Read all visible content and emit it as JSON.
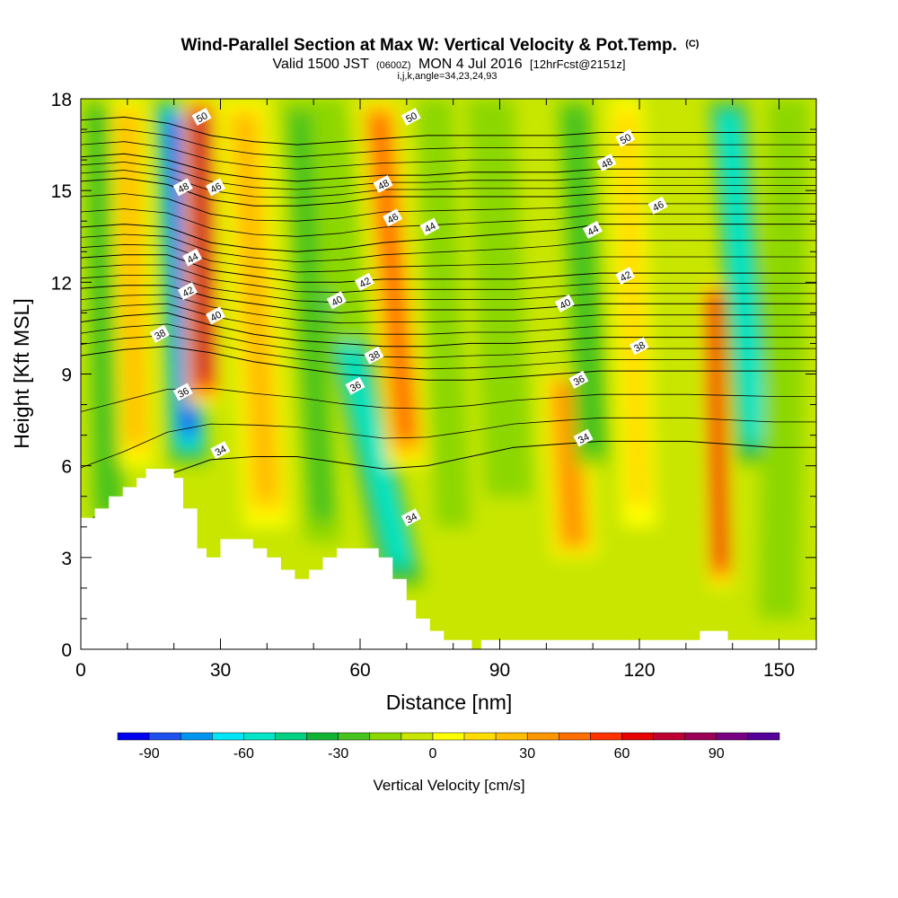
{
  "chart_data": {
    "type": "heatmap",
    "title": "Wind-Parallel Section at Max W: Vertical Velocity & Pot.Temp.",
    "title_mark": "(C)",
    "subtitle_parts": [
      "Valid 1500 JST",
      "(0600Z)",
      "MON 4 Jul 2016",
      "[12hrFcst@2151z]"
    ],
    "subtitle2": "i,j,k,angle=34,23,24,93",
    "xlabel": "Distance [nm]",
    "ylabel": "Height [Kft MSL]",
    "xlim": [
      0,
      158
    ],
    "ylim": [
      0,
      18
    ],
    "xticks": [
      0,
      30,
      60,
      90,
      120,
      150
    ],
    "yticks": [
      0,
      3,
      6,
      9,
      12,
      15,
      18
    ],
    "colorbar": {
      "label": "Vertical Velocity [cm/s]",
      "range": [
        -100,
        110
      ],
      "step": 10,
      "tick_values": [
        -90,
        -60,
        -30,
        0,
        30,
        60,
        90
      ],
      "tick_labels": [
        "-90",
        "-60",
        "-30",
        "0",
        "30",
        "60",
        "90"
      ],
      "colors": [
        "#0000f0",
        "#1e50f0",
        "#0096f0",
        "#00e6f8",
        "#00e6c8",
        "#00d282",
        "#10b432",
        "#46c31e",
        "#8cd700",
        "#c8e600",
        "#ffff00",
        "#ffdc00",
        "#ffbe00",
        "#ff9600",
        "#ff6e00",
        "#ff3200",
        "#e60000",
        "#be0032",
        "#9a0055",
        "#780082",
        "#55009a"
      ]
    },
    "terrain_profile": {
      "x": [
        0,
        3,
        3,
        6,
        6,
        9,
        9,
        12,
        12,
        14,
        14,
        20,
        20,
        22,
        22,
        25,
        25,
        27,
        27,
        30,
        30,
        33,
        33,
        37,
        37,
        40,
        40,
        43,
        43,
        46,
        46,
        49,
        49,
        52,
        52,
        55,
        55,
        57,
        57,
        61,
        61,
        64,
        64,
        67,
        67,
        70,
        70,
        72,
        72,
        75,
        75,
        78,
        78,
        82,
        82,
        84,
        84,
        86,
        86,
        133,
        133,
        139,
        139,
        158
      ],
      "y": [
        4.3,
        4.3,
        4.6,
        4.6,
        5.0,
        5.0,
        5.3,
        5.3,
        5.6,
        5.6,
        5.9,
        5.9,
        5.6,
        5.6,
        4.6,
        4.6,
        3.3,
        3.3,
        3.0,
        3.0,
        3.6,
        3.6,
        3.6,
        3.6,
        3.3,
        3.3,
        3.0,
        3.0,
        2.6,
        2.6,
        2.3,
        2.3,
        2.6,
        2.6,
        3.0,
        3.0,
        3.3,
        3.3,
        3.3,
        3.3,
        3.3,
        3.3,
        3.0,
        3.0,
        2.3,
        2.3,
        1.6,
        1.6,
        1.0,
        1.0,
        0.6,
        0.6,
        0.3,
        0.3,
        0.3,
        0.3,
        0.0,
        0.0,
        0.3,
        0.3,
        0.6,
        0.6,
        0.3,
        0.3
      ]
    },
    "velocity_bands": [
      {
        "bottom": [
          23.2,
          6.0
        ],
        "top": [
          20.0,
          18.0
        ],
        "halfwidth": 3.5,
        "value": -85
      },
      {
        "bottom": [
          26.5,
          8.0
        ],
        "top": [
          25.5,
          18.0
        ],
        "halfwidth": 3.0,
        "value": 75
      },
      {
        "bottom": [
          6.0,
          4.0
        ],
        "top": [
          4.0,
          18.0
        ],
        "halfwidth": 3.0,
        "value": -30
      },
      {
        "bottom": [
          12.0,
          6.0
        ],
        "top": [
          10.0,
          18.0
        ],
        "halfwidth": 3.0,
        "value": 20
      },
      {
        "bottom": [
          40.0,
          4.0
        ],
        "top": [
          35.0,
          18.0
        ],
        "halfwidth": 4.0,
        "value": 20
      },
      {
        "bottom": [
          52.0,
          3.5
        ],
        "top": [
          47.0,
          18.0
        ],
        "halfwidth": 3.0,
        "value": -25
      },
      {
        "bottom": [
          69.0,
          2.0
        ],
        "top": [
          55.0,
          12.0
        ],
        "halfwidth": 4.0,
        "value": -55
      },
      {
        "bottom": [
          70.0,
          6.0
        ],
        "top": [
          64.0,
          18.0
        ],
        "halfwidth": 3.5,
        "value": 45
      },
      {
        "bottom": [
          58.0,
          10.0
        ],
        "top": [
          53.0,
          18.0
        ],
        "halfwidth": 3.0,
        "value": -20
      },
      {
        "bottom": [
          80.0,
          4.0
        ],
        "top": [
          76.0,
          18.0
        ],
        "halfwidth": 3.0,
        "value": -15
      },
      {
        "bottom": [
          92.0,
          5.0
        ],
        "top": [
          88.0,
          18.0
        ],
        "halfwidth": 4.0,
        "value": -12
      },
      {
        "bottom": [
          106.0,
          3.0
        ],
        "top": [
          104.0,
          9.0
        ],
        "halfwidth": 4.0,
        "value": 30
      },
      {
        "bottom": [
          110.0,
          6.0
        ],
        "top": [
          106.0,
          18.0
        ],
        "halfwidth": 3.0,
        "value": -30
      },
      {
        "bottom": [
          120.0,
          4.0
        ],
        "top": [
          117.0,
          18.0
        ],
        "halfwidth": 3.0,
        "value": 12
      },
      {
        "bottom": [
          137.5,
          2.0
        ],
        "top": [
          136.0,
          12.0
        ],
        "halfwidth": 2.2,
        "value": 65
      },
      {
        "bottom": [
          145.0,
          6.0
        ],
        "top": [
          139.0,
          18.0
        ],
        "halfwidth": 3.5,
        "value": -60
      },
      {
        "bottom": [
          150.0,
          1.0
        ],
        "top": [
          152.0,
          18.0
        ],
        "halfwidth": 3.5,
        "value": -20
      }
    ],
    "isentropes": {
      "levels": [
        34,
        36,
        38,
        40,
        42,
        44,
        46,
        48,
        50
      ],
      "heights_kft": [
        [
          4.1,
          4.8,
          5.7,
          6.2,
          6.3,
          6.3,
          6.1,
          5.9,
          6.0,
          6.3,
          6.6,
          6.7,
          6.8,
          6.8,
          6.8,
          6.7,
          6.6,
          6.6
        ],
        [
          9.6,
          9.8,
          9.9,
          9.7,
          9.4,
          9.2,
          9.0,
          8.9,
          8.8,
          8.8,
          8.9,
          9.0,
          9.1,
          9.1,
          9.1,
          9.1,
          9.1,
          9.1
        ],
        [
          10.7,
          10.9,
          11.0,
          10.6,
          10.3,
          10.1,
          10.0,
          9.9,
          9.9,
          10.0,
          10.0,
          10.1,
          10.2,
          10.2,
          10.2,
          10.2,
          10.2,
          10.2
        ],
        [
          11.8,
          11.9,
          11.9,
          11.5,
          11.3,
          11.1,
          11.0,
          11.1,
          11.1,
          11.1,
          11.1,
          11.2,
          11.3,
          11.3,
          11.3,
          11.3,
          11.3,
          11.3
        ],
        [
          12.8,
          12.9,
          12.9,
          12.4,
          12.2,
          12.0,
          12.0,
          12.1,
          12.1,
          12.1,
          12.1,
          12.2,
          12.3,
          12.3,
          12.3,
          12.3,
          12.3,
          12.3
        ],
        [
          13.8,
          13.9,
          13.8,
          13.3,
          13.1,
          13.0,
          13.1,
          13.3,
          13.4,
          13.5,
          13.6,
          13.7,
          13.9,
          13.9,
          13.9,
          13.9,
          13.9,
          13.9
        ],
        [
          15.3,
          15.4,
          15.2,
          14.7,
          14.5,
          14.5,
          14.6,
          14.8,
          14.8,
          14.8,
          14.8,
          14.8,
          14.9,
          14.9,
          14.9,
          14.9,
          14.9,
          14.9
        ],
        [
          16.1,
          16.2,
          16.0,
          15.6,
          15.4,
          15.3,
          15.4,
          15.5,
          15.5,
          15.6,
          15.6,
          15.6,
          15.7,
          15.7,
          15.7,
          15.7,
          15.7,
          15.7
        ],
        [
          17.3,
          17.4,
          17.2,
          16.8,
          16.6,
          16.5,
          16.6,
          16.7,
          16.8,
          16.8,
          16.8,
          16.8,
          16.9,
          16.9,
          16.9,
          16.9,
          16.9,
          16.9
        ]
      ],
      "labels": [
        {
          "text": "34",
          "x": 30,
          "y": 6.5
        },
        {
          "text": "34",
          "x": 71,
          "y": 4.3
        },
        {
          "text": "34",
          "x": 108,
          "y": 6.9
        },
        {
          "text": "36",
          "x": 22,
          "y": 8.4
        },
        {
          "text": "36",
          "x": 59,
          "y": 8.6
        },
        {
          "text": "36",
          "x": 107,
          "y": 8.8
        },
        {
          "text": "38",
          "x": 17,
          "y": 10.3
        },
        {
          "text": "38",
          "x": 63,
          "y": 9.6
        },
        {
          "text": "38",
          "x": 120,
          "y": 9.9
        },
        {
          "text": "40",
          "x": 29,
          "y": 10.9
        },
        {
          "text": "40",
          "x": 55,
          "y": 11.4
        },
        {
          "text": "40",
          "x": 104,
          "y": 11.3
        },
        {
          "text": "42",
          "x": 23,
          "y": 11.7
        },
        {
          "text": "42",
          "x": 61,
          "y": 12.0
        },
        {
          "text": "42",
          "x": 117,
          "y": 12.2
        },
        {
          "text": "44",
          "x": 24,
          "y": 12.8
        },
        {
          "text": "44",
          "x": 75,
          "y": 13.8
        },
        {
          "text": "44",
          "x": 110,
          "y": 13.7
        },
        {
          "text": "46",
          "x": 29,
          "y": 15.1
        },
        {
          "text": "46",
          "x": 67,
          "y": 14.1
        },
        {
          "text": "46",
          "x": 124,
          "y": 14.5
        },
        {
          "text": "48",
          "x": 22,
          "y": 15.1
        },
        {
          "text": "48",
          "x": 65,
          "y": 15.2
        },
        {
          "text": "48",
          "x": 113,
          "y": 15.9
        },
        {
          "text": "50",
          "x": 26,
          "y": 17.4
        },
        {
          "text": "50",
          "x": 71,
          "y": 17.4
        },
        {
          "text": "50",
          "x": 117,
          "y": 16.7
        }
      ]
    }
  }
}
